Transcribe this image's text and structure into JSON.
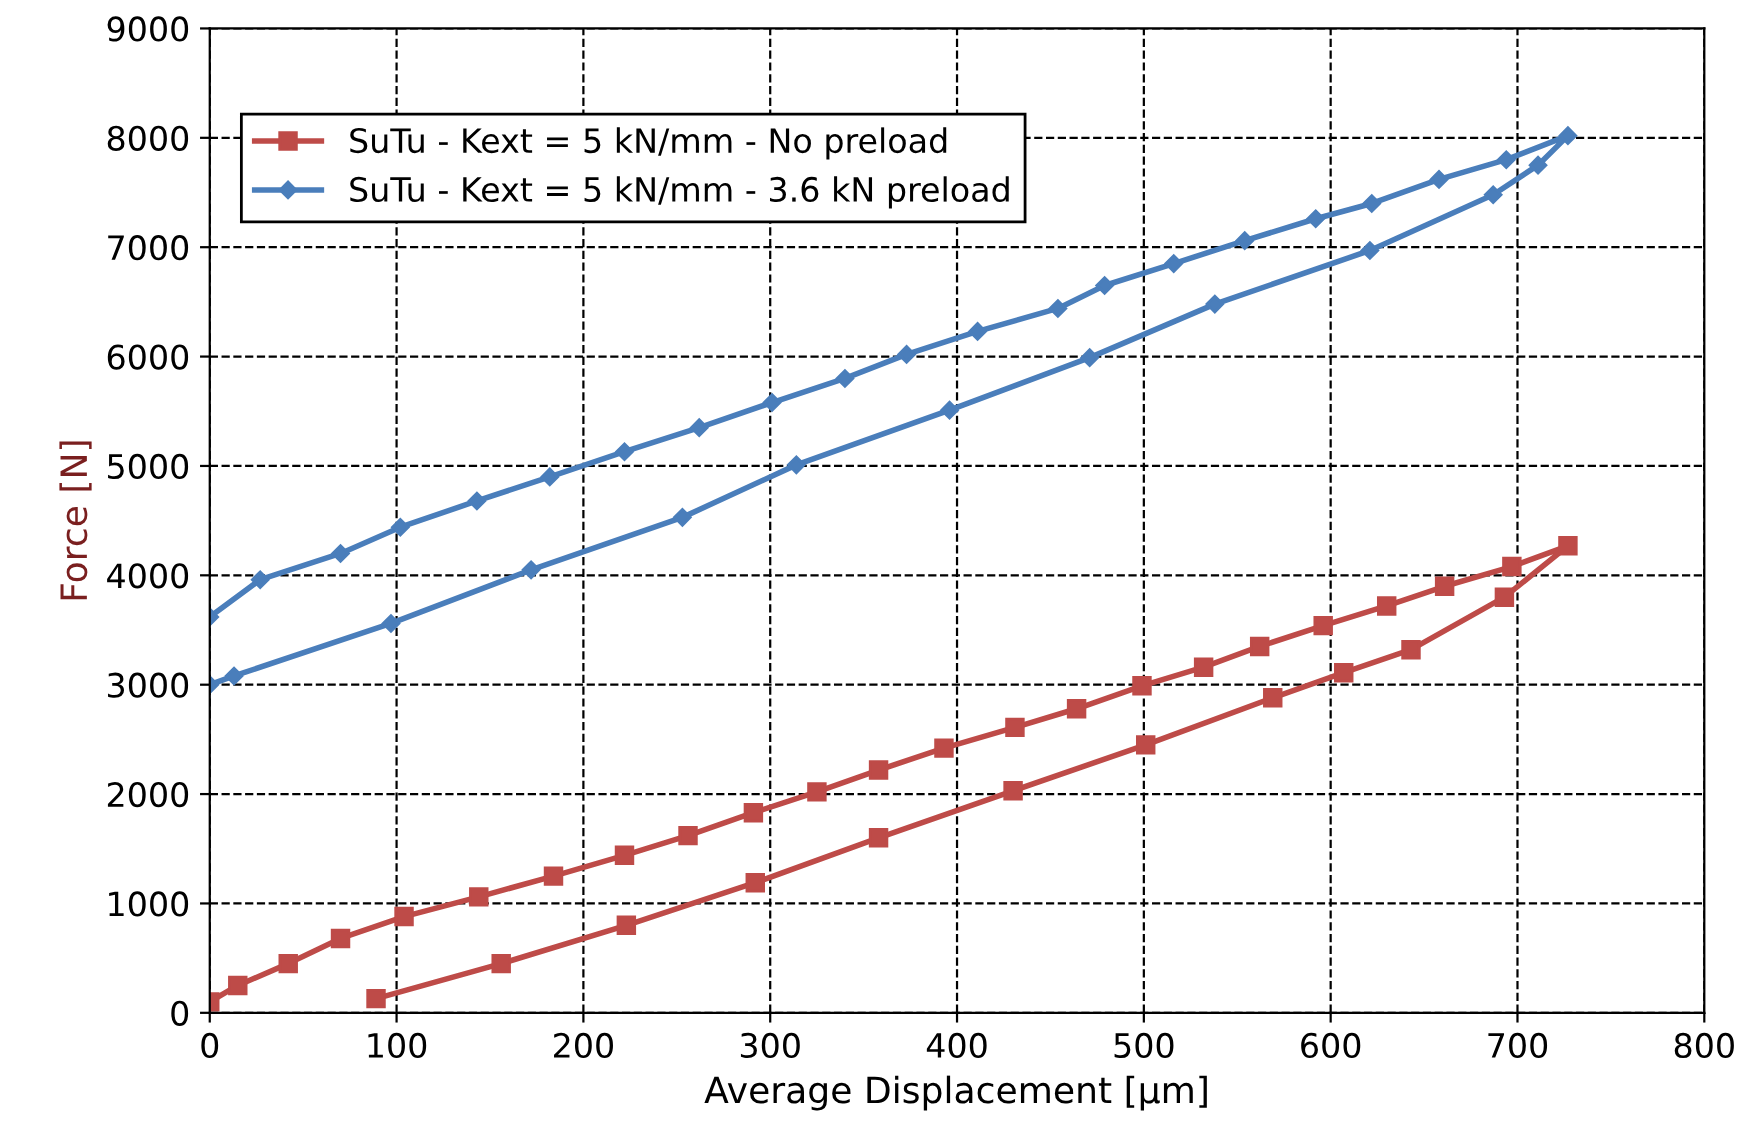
{
  "chart_data": {
    "type": "line",
    "xlabel": "Average Displacement [µm]",
    "ylabel": "Force [N]",
    "xlim": [
      0,
      800
    ],
    "xticks": [
      0,
      100,
      200,
      300,
      400,
      500,
      600,
      700,
      800
    ],
    "ylim": [
      0,
      9000
    ],
    "yticks": [
      0,
      1000,
      2000,
      3000,
      4000,
      5000,
      6000,
      7000,
      8000,
      9000
    ],
    "grid": true,
    "legend": "top left",
    "line_style": "solid",
    "series": [
      {
        "name": "SuTu - Kext = 5 kN/mm - No preload",
        "color": "#be4b48",
        "marker": "square",
        "x": [
          0,
          15,
          42,
          70,
          104,
          144,
          184,
          222,
          256,
          291,
          325,
          358,
          393,
          431,
          464,
          499,
          532,
          562,
          596,
          630,
          661,
          697,
          727,
          693,
          643,
          607,
          569,
          501,
          430,
          358,
          292,
          223,
          156,
          89
        ],
        "values": [
          100,
          250,
          450,
          680,
          880,
          1060,
          1250,
          1440,
          1620,
          1830,
          2020,
          2220,
          2420,
          2610,
          2780,
          2990,
          3160,
          3350,
          3540,
          3720,
          3900,
          4080,
          4270,
          3800,
          3320,
          3110,
          2880,
          2450,
          2030,
          1600,
          1190,
          800,
          450,
          130
        ]
      },
      {
        "name": "SuTu - Kext = 5 kN/mm - 3.6 kN preload",
        "color": "#4a7ebb",
        "marker": "diamond",
        "x": [
          0,
          27,
          70,
          102,
          143,
          182,
          222,
          262,
          301,
          340,
          373,
          411,
          454,
          479,
          516,
          554,
          592,
          622,
          658,
          694,
          727,
          711,
          687,
          621,
          538,
          471,
          396,
          314,
          253,
          172,
          97,
          13,
          0
        ],
        "values": [
          3620,
          3960,
          4200,
          4440,
          4680,
          4900,
          5130,
          5350,
          5580,
          5800,
          6020,
          6230,
          6440,
          6650,
          6850,
          7060,
          7260,
          7400,
          7620,
          7800,
          8020,
          7750,
          7480,
          6970,
          6480,
          5990,
          5510,
          5010,
          4530,
          4050,
          3560,
          3080,
          3000
        ]
      }
    ]
  }
}
